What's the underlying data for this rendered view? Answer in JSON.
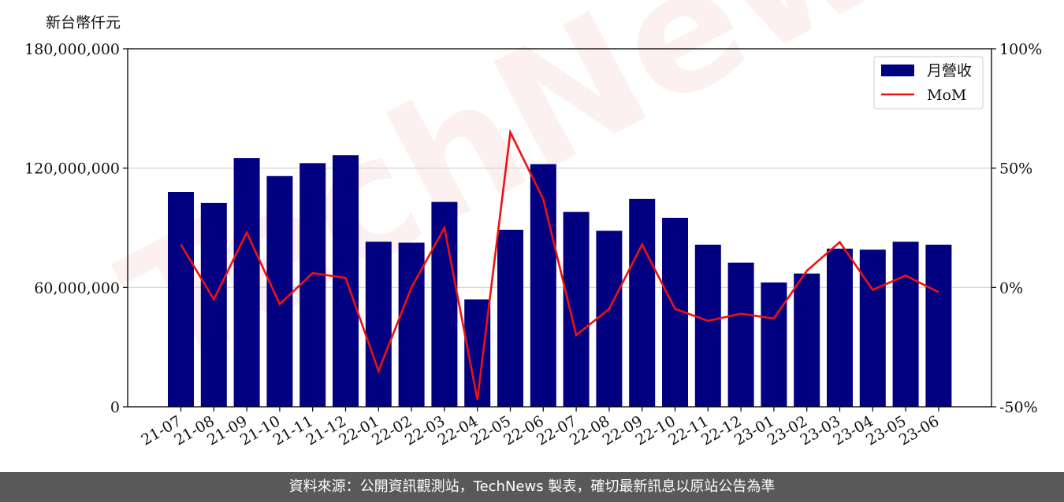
{
  "unit_label": "新台幣仟元",
  "watermark_text": "TechNews",
  "footer_text": "資料來源：公開資訊觀測站，TechNews 製表，確切最新訊息以原站公告為準",
  "colors": {
    "bar": "#000080",
    "line": "#ee1111",
    "grid": "#d0d0d0",
    "footer_bg": "#595959"
  },
  "chart_data": {
    "type": "bar",
    "categories": [
      "21-07",
      "21-08",
      "21-09",
      "21-10",
      "21-11",
      "21-12",
      "22-01",
      "22-02",
      "22-03",
      "22-04",
      "22-05",
      "22-06",
      "22-07",
      "22-08",
      "22-09",
      "22-10",
      "22-11",
      "22-12",
      "23-01",
      "23-02",
      "23-03",
      "23-04",
      "23-05",
      "23-06"
    ],
    "series": [
      {
        "name": "月營收",
        "type": "bar",
        "axis": "left",
        "values": [
          108000000,
          102500000,
          125000000,
          116000000,
          122500000,
          126500000,
          83000000,
          82500000,
          103000000,
          54000000,
          89000000,
          122000000,
          98000000,
          88500000,
          104500000,
          95000000,
          81500000,
          72500000,
          62500000,
          67000000,
          79500000,
          79000000,
          83000000,
          81500000
        ]
      },
      {
        "name": "MoM",
        "type": "line",
        "axis": "right",
        "values": [
          18,
          -5,
          23,
          -7,
          6,
          4,
          -35,
          0,
          25,
          -47,
          65,
          37,
          -20,
          -9,
          18,
          -9,
          -14,
          -11,
          -13,
          7,
          19,
          -1,
          5,
          -2
        ]
      }
    ],
    "left_axis": {
      "ylim": [
        0,
        180000000
      ],
      "ticks": [
        0,
        60000000,
        120000000,
        180000000
      ],
      "tick_labels": [
        "0",
        "60,000,000",
        "120,000,000",
        "180,000,000"
      ]
    },
    "right_axis": {
      "ylim": [
        -50,
        100
      ],
      "ticks": [
        -50,
        0,
        50,
        100
      ],
      "tick_labels": [
        "-50%",
        "0%",
        "50%",
        "100%"
      ]
    },
    "grid": true,
    "legend_position": "top-right"
  }
}
